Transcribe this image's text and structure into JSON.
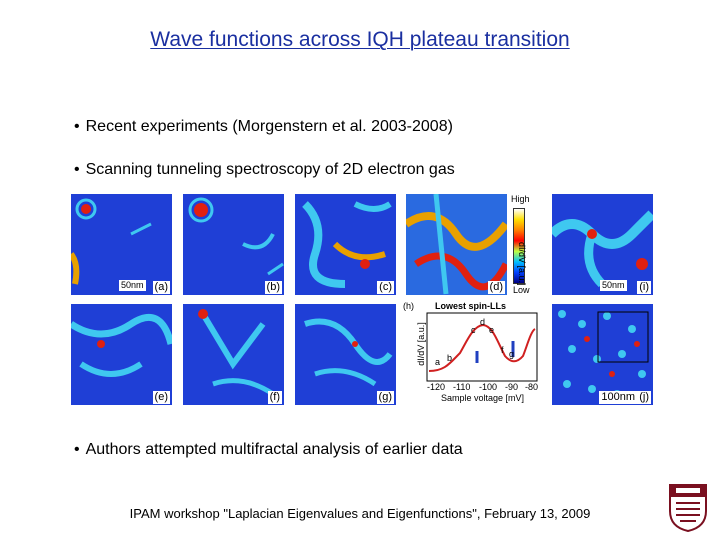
{
  "slide": {
    "title": "Wave functions across IQH plateau transition",
    "bullets": [
      "Recent experiments (Morgenstern et al. 2003-2008)",
      "Scanning tunneling spectroscopy of 2D electron gas",
      "Authors attempted multifractal analysis of earlier data"
    ],
    "bullet_glyph": "•",
    "footer": "IPAM workshop \"Laplacian Eigenvalues and Eigenfunctions\", February 13, 2009"
  },
  "figure": {
    "panels": [
      "(a)",
      "(b)",
      "(c)",
      "(d)",
      "(e)",
      "(f)",
      "(g)",
      "(h)",
      "(i)",
      "(j)"
    ],
    "scale_bars": [
      "50nm",
      "50nm",
      "100nm"
    ],
    "colorbar": {
      "high": "High",
      "low": "Low",
      "unit": "dI/dV [a.u.]"
    },
    "spectrum": {
      "title": "Lowest spin-LLs",
      "xlabel": "Sample voltage [mV]",
      "ylabel": "dI/dV [a.u.]",
      "xticks": [
        "-120",
        "-110",
        "-100",
        "-90",
        "-80"
      ],
      "points": [
        "a",
        "b",
        "c",
        "d",
        "e",
        "f",
        "g"
      ]
    },
    "colors": {
      "map_blue": "#1f3fd6",
      "map_cyan": "#3fc8f0",
      "map_red": "#e02010",
      "spectrum_line": "#d02020",
      "arrow_blue": "#2040c0"
    }
  }
}
